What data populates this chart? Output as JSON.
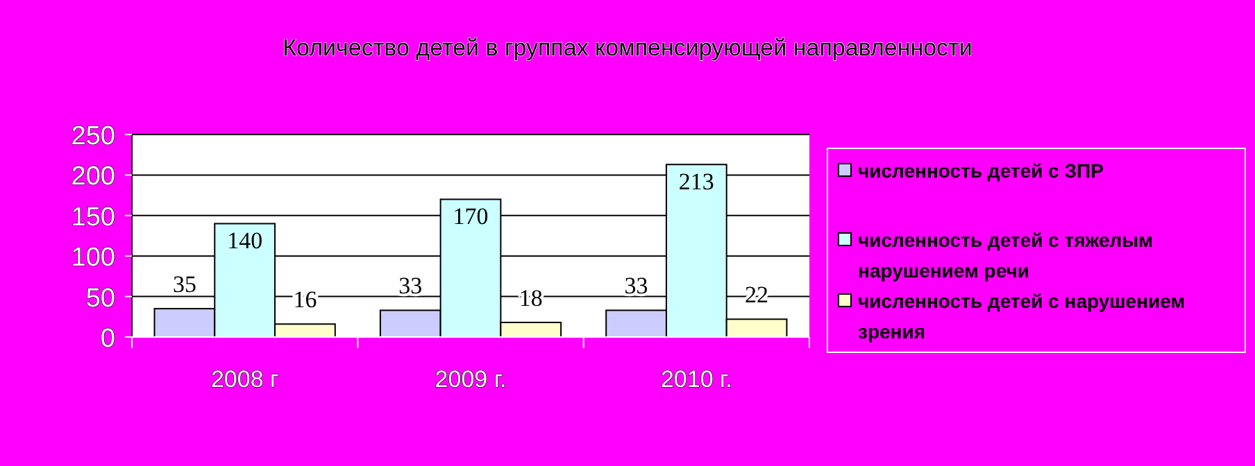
{
  "chart_data": {
    "type": "bar",
    "title": "Количество детей в группах компенсирующей направленности",
    "categories": [
      "2008 г",
      "2009 г.",
      "2010 г."
    ],
    "series": [
      {
        "name": "численность детей с ЗПР",
        "color": "#ccccff",
        "values": [
          35,
          33,
          33
        ]
      },
      {
        "name": "численность детей с тяжелым нарушением речи",
        "color": "#ccffff",
        "values": [
          140,
          170,
          213
        ]
      },
      {
        "name": "численность детей с нарушением зрения",
        "color": "#ffffcc",
        "values": [
          16,
          18,
          22
        ]
      }
    ],
    "ylim": [
      0,
      250
    ],
    "yticks": [
      0,
      50,
      100,
      150,
      200,
      250
    ],
    "grid": "y",
    "legend": "right",
    "data_labels": true
  }
}
